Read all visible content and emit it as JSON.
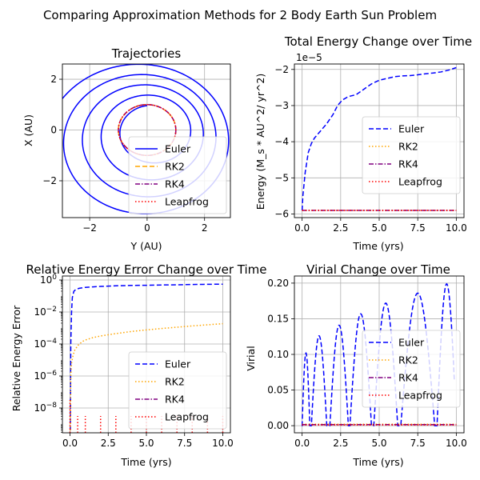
{
  "figure": {
    "suptitle": "Comparing Approximation Methods for 2 Body Earth Sun Problem",
    "series_colors": {
      "Euler": "#0000ff",
      "RK2": "#ffa500",
      "RK4": "#800080",
      "Leapfrog": "#ff0000"
    }
  },
  "chart_data": [
    {
      "type": "line",
      "title": "Trajectories",
      "xlabel": "Y (AU)",
      "ylabel": "X (AU)",
      "xlim": [
        -2.95,
        2.9
      ],
      "ylim": [
        -3.45,
        2.6
      ],
      "xticks": [
        -2,
        0,
        2
      ],
      "xticklabels": [
        "−2",
        "0",
        "2"
      ],
      "yticks": [
        -2,
        0,
        2
      ],
      "yticklabels": [
        "−2",
        "0",
        "2"
      ],
      "grid": true,
      "legend": {
        "position": "lower-right",
        "entries": [
          "Euler",
          "RK2",
          "RK4",
          "Leapfrog"
        ]
      },
      "series": [
        {
          "name": "Euler",
          "style": "solid",
          "description_values": {
            "start": [
              -0.5,
              2.4
            ],
            "turns": 4.2,
            "r_start": 1.0,
            "r_end": 3.3
          }
        },
        {
          "name": "RK2",
          "style": "dashed",
          "description_values": {
            "radius": 1.0
          }
        },
        {
          "name": "RK4",
          "style": "dashdot",
          "description_values": {
            "radius": 1.0
          }
        },
        {
          "name": "Leapfrog",
          "style": "dotted",
          "description_values": {
            "radius": 1.0
          }
        }
      ]
    },
    {
      "type": "line",
      "title": "Total Energy Change over Time",
      "xlabel": "Time (yrs)",
      "ylabel": "Energy (M_s * AU^2/ yr^2)",
      "offset_label": "1e−5",
      "xlim": [
        -0.5,
        10.5
      ],
      "ylim": [
        -6.1,
        -1.85
      ],
      "xticks": [
        0,
        2.5,
        5,
        7.5,
        10
      ],
      "xticklabels": [
        "0.0",
        "2.5",
        "5.0",
        "7.5",
        "10.0"
      ],
      "yticks": [
        -6,
        -5,
        -4,
        -3,
        -2
      ],
      "yticklabels": [
        "−6",
        "−5",
        "−4",
        "−3",
        "−2"
      ],
      "grid": true,
      "legend": {
        "position": "center-right",
        "entries": [
          "Euler",
          "RK2",
          "RK4",
          "Leapfrog"
        ]
      },
      "series": [
        {
          "name": "Euler",
          "style": "dashed",
          "x": [
            0,
            0.05,
            0.2,
            0.4,
            0.6,
            0.8,
            1.0,
            1.3,
            1.6,
            2.0,
            2.3,
            2.6,
            3.0,
            3.5,
            4.0,
            4.5,
            5.0,
            5.5,
            6.0,
            6.5,
            7.0,
            7.5,
            8.0,
            8.5,
            9.0,
            9.5,
            10.0
          ],
          "y": [
            -5.9,
            -5.5,
            -4.85,
            -4.3,
            -4.05,
            -3.9,
            -3.8,
            -3.65,
            -3.5,
            -3.25,
            -3.0,
            -2.85,
            -2.75,
            -2.7,
            -2.55,
            -2.4,
            -2.3,
            -2.25,
            -2.2,
            -2.18,
            -2.17,
            -2.15,
            -2.12,
            -2.1,
            -2.07,
            -2.02,
            -1.95
          ]
        },
        {
          "name": "RK2",
          "style": "dotted",
          "x": [
            0,
            10
          ],
          "y": [
            -5.9,
            -5.9
          ]
        },
        {
          "name": "RK4",
          "style": "dashdot",
          "x": [
            0,
            10
          ],
          "y": [
            -5.9,
            -5.9
          ]
        },
        {
          "name": "Leapfrog",
          "style": "dotted",
          "x": [
            0,
            10
          ],
          "y": [
            -5.9,
            -5.9
          ]
        }
      ]
    },
    {
      "type": "line",
      "title": "Relative Energy Error Change over Time",
      "xlabel": "Time (yrs)",
      "ylabel": "Relative Energy Error",
      "yscale": "log",
      "xlim": [
        -0.5,
        10.5
      ],
      "ylim_log10": [
        -9.55,
        0.25
      ],
      "xticks": [
        0,
        2.5,
        5,
        7.5,
        10
      ],
      "xticklabels": [
        "0.0",
        "2.5",
        "5.0",
        "7.5",
        "10.0"
      ],
      "yticks_log10": [
        0,
        -2,
        -4,
        -6,
        -8
      ],
      "yticklabels": [
        "10^0",
        "10^−2",
        "10^−4",
        "10^−6",
        "10^−8"
      ],
      "grid": true,
      "legend": {
        "position": "lower-right",
        "entries": [
          "Euler",
          "RK2",
          "RK4",
          "Leapfrog"
        ]
      },
      "series": [
        {
          "name": "Euler",
          "style": "dashed",
          "x": [
            0.02,
            0.05,
            0.1,
            0.15,
            0.25,
            0.4,
            0.6,
            1.0,
            1.5,
            2.0,
            3.0,
            4.0,
            5.0,
            6.0,
            7.0,
            8.0,
            9.0,
            10.0
          ],
          "log10_y": [
            -9.4,
            -4.0,
            -2.0,
            -1.1,
            -0.7,
            -0.58,
            -0.52,
            -0.46,
            -0.43,
            -0.4,
            -0.36,
            -0.34,
            -0.33,
            -0.31,
            -0.3,
            -0.28,
            -0.27,
            -0.26
          ]
        },
        {
          "name": "RK2",
          "style": "dotted",
          "x": [
            0.02,
            0.05,
            0.1,
            0.2,
            0.3,
            0.5,
            0.8,
            1.0,
            1.5,
            2.0,
            3.0,
            4.0,
            5.0,
            6.0,
            7.0,
            8.0,
            9.0,
            10.0
          ],
          "log10_y": [
            -9.4,
            -6.0,
            -5.2,
            -4.7,
            -4.4,
            -4.1,
            -3.85,
            -3.75,
            -3.6,
            -3.5,
            -3.35,
            -3.22,
            -3.12,
            -3.03,
            -2.95,
            -2.87,
            -2.8,
            -2.73
          ]
        },
        {
          "name": "RK4",
          "style": "dashdot",
          "x": [
            0.02
          ],
          "log10_y": [
            -9.5
          ]
        },
        {
          "name": "Leapfrog",
          "style": "dotted",
          "spikes_x": [
            0,
            0.5,
            1.0,
            2.0,
            3.0,
            4.0,
            5.0,
            6.0,
            7.0,
            8.0,
            9.0,
            10.0
          ],
          "spikes_log10_peak": [
            -7.5,
            -8.5,
            -8.5,
            -8.5,
            -8.5,
            -8.5,
            -8.5,
            -8.5,
            -8.5,
            -8.5,
            -8.5,
            -8.5
          ]
        }
      ]
    },
    {
      "type": "line",
      "title": "Virial Change over Time",
      "xlabel": "Time (yrs)",
      "ylabel": "Virial",
      "xlim": [
        -0.5,
        10.5
      ],
      "ylim": [
        -0.01,
        0.21
      ],
      "xticks": [
        0,
        2.5,
        5,
        7.5,
        10
      ],
      "xticklabels": [
        "0.0",
        "2.5",
        "5.0",
        "7.5",
        "10.0"
      ],
      "yticks": [
        0,
        0.05,
        0.1,
        0.15,
        0.2
      ],
      "yticklabels": [
        "0.00",
        "0.05",
        "0.10",
        "0.15",
        "0.20"
      ],
      "grid": true,
      "legend": {
        "position": "center-right",
        "entries": [
          "Euler",
          "RK2",
          "RK4",
          "Leapfrog"
        ]
      },
      "series": [
        {
          "name": "Euler",
          "style": "dashed",
          "lobes": [
            {
              "x0": 0.0,
              "x1": 0.5,
              "peak": 0.102
            },
            {
              "x0": 0.6,
              "x1": 1.6,
              "peak": 0.126
            },
            {
              "x0": 1.8,
              "x1": 3.0,
              "peak": 0.141
            },
            {
              "x0": 3.1,
              "x1": 4.5,
              "peak": 0.157
            },
            {
              "x0": 4.65,
              "x1": 6.2,
              "peak": 0.172
            },
            {
              "x0": 6.4,
              "x1": 8.6,
              "peak": 0.186
            },
            {
              "x0": 8.75,
              "x1": 10.0,
              "peak": 0.199,
              "open_end": true
            }
          ]
        },
        {
          "name": "RK2",
          "style": "dotted",
          "x": [
            0,
            10
          ],
          "y": [
            0.002,
            0.002
          ]
        },
        {
          "name": "RK4",
          "style": "dashdot",
          "x": [
            0,
            10
          ],
          "y": [
            0.0015,
            0.0015
          ]
        },
        {
          "name": "Leapfrog",
          "style": "dotted",
          "x": [
            0,
            10
          ],
          "y": [
            0.001,
            0.001
          ]
        }
      ]
    }
  ]
}
